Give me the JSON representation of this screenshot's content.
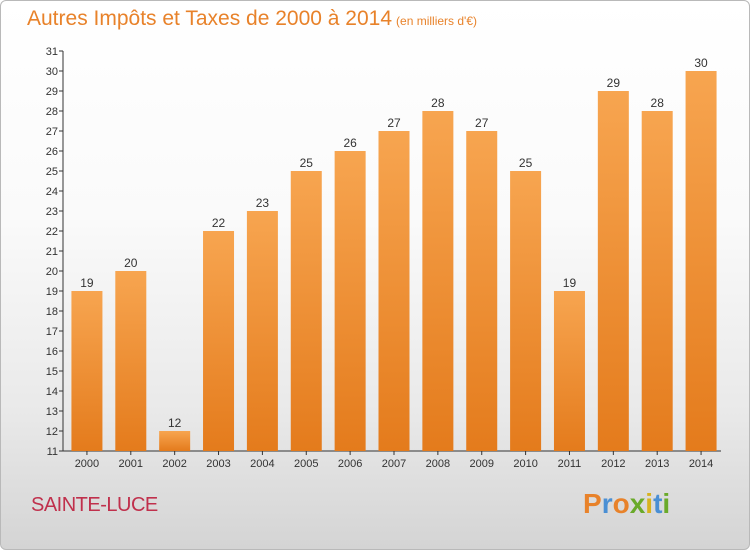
{
  "header": {
    "title": "Autres Impôts et Taxes de 2000 à 2014",
    "unit": "(en milliers d'€)"
  },
  "footer": {
    "city": "SAINTE-LUCE",
    "brand": "Proxiti"
  },
  "colors": {
    "bar_top": "#f7a550",
    "bar_bottom": "#e47b1c",
    "title": "#e8822a",
    "city": "#c0304c",
    "brand_letters": [
      "#e8822a",
      "#4a8fd4",
      "#e8822a",
      "#6aaa2a",
      "#d8b21e",
      "#4a8fd4",
      "#6aaa2a"
    ]
  },
  "chart_data": {
    "type": "bar",
    "title": "Autres Impôts et Taxes de 2000 à 2014",
    "subtitle": "(en milliers d'€)",
    "xlabel": "",
    "ylabel": "",
    "categories": [
      "2000",
      "2001",
      "2002",
      "2003",
      "2004",
      "2005",
      "2006",
      "2007",
      "2008",
      "2009",
      "2010",
      "2011",
      "2012",
      "2013",
      "2014"
    ],
    "values": [
      19,
      20,
      12,
      22,
      23,
      25,
      26,
      27,
      28,
      27,
      25,
      19,
      29,
      28,
      30
    ],
    "value_labels": [
      "19",
      "20",
      "12",
      "22",
      "23",
      "25",
      "26",
      "27",
      "28",
      "27",
      "25",
      "19",
      "29",
      "28",
      "30"
    ],
    "ylim": [
      11,
      31
    ],
    "yticks": [
      "11",
      "12",
      "13",
      "14",
      "15",
      "16",
      "17",
      "18",
      "19",
      "20",
      "21",
      "22",
      "23",
      "24",
      "25",
      "26",
      "27",
      "28",
      "29",
      "30",
      "31"
    ],
    "grid": false,
    "legend": "none"
  }
}
